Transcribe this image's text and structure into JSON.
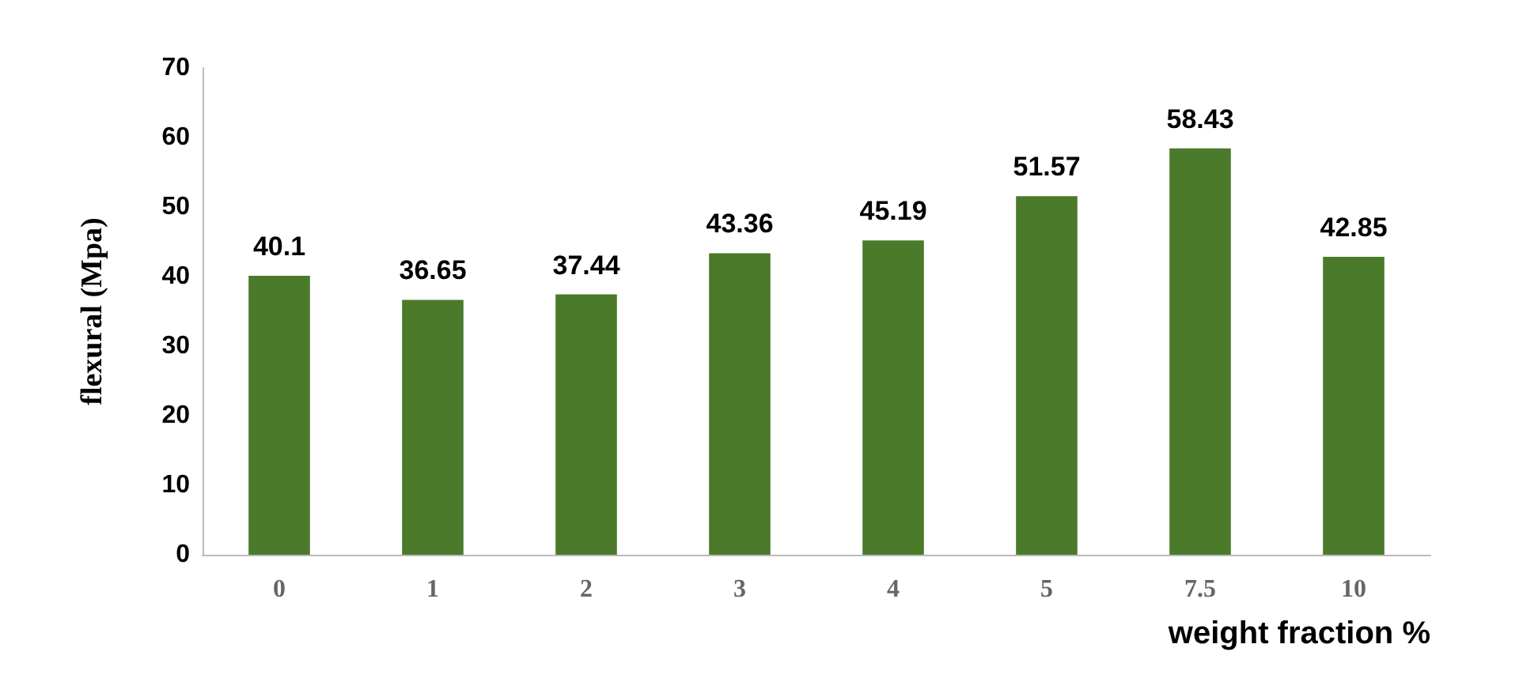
{
  "chart_data": {
    "type": "bar",
    "xlabel": "weight fraction %",
    "ylabel": "flexural (Mpa)",
    "categories": [
      "0",
      "1",
      "2",
      "3",
      "4",
      "5",
      "7.5",
      "10"
    ],
    "values": [
      40.1,
      36.65,
      37.44,
      43.36,
      45.19,
      51.57,
      58.43,
      42.85
    ],
    "color": "#4a7a2a",
    "ylim": [
      0,
      70
    ],
    "yticks": [
      0,
      10,
      20,
      30,
      40,
      50,
      60,
      70
    ],
    "grid": false,
    "data_labels": true
  }
}
